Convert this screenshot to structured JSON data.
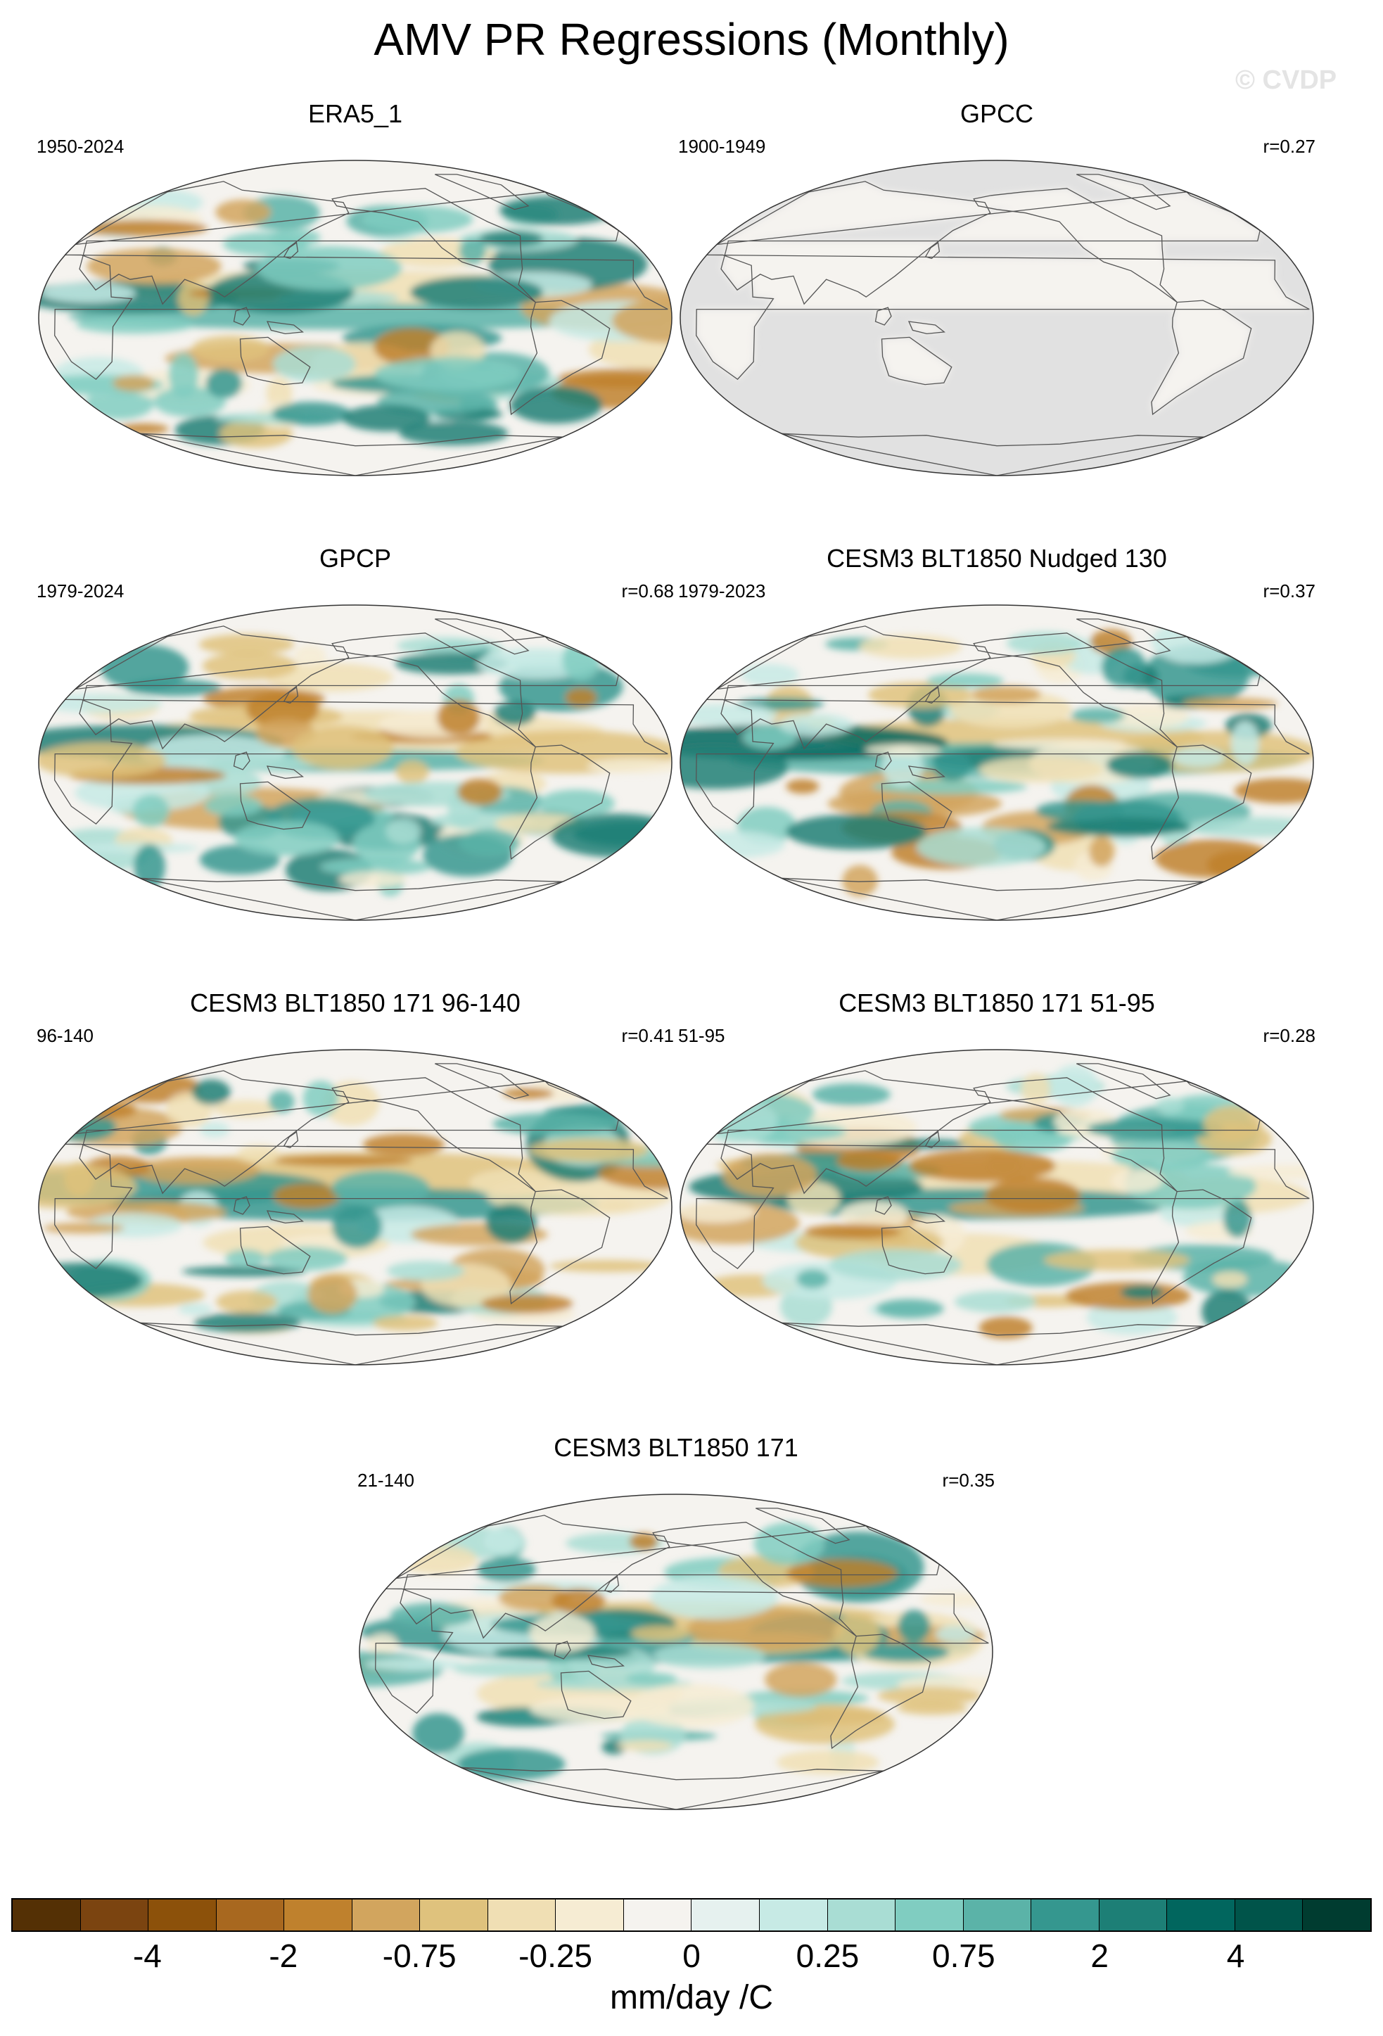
{
  "figure": {
    "title": "AMV PR Regressions (Monthly)",
    "watermark": "© CVDP"
  },
  "panels": [
    {
      "id": "era5",
      "title": "ERA5_1",
      "period": "1950-2024",
      "r": "",
      "mask_ocean": false,
      "pattern": 1
    },
    {
      "id": "gpcc",
      "title": "GPCC",
      "period": "1900-1949",
      "r": "r=0.27",
      "mask_ocean": true,
      "pattern": 2
    },
    {
      "id": "gpcp",
      "title": "GPCP",
      "period": "1979-2024",
      "r": "r=0.68",
      "mask_ocean": false,
      "pattern": 3
    },
    {
      "id": "cesm-nudged",
      "title": "CESM3 BLT1850 Nudged 130",
      "period": "1979-2023",
      "r": "r=0.37",
      "mask_ocean": false,
      "pattern": 4
    },
    {
      "id": "cesm-96-140",
      "title": "CESM3 BLT1850 171 96-140",
      "period": "96-140",
      "r": "r=0.41",
      "mask_ocean": false,
      "pattern": 5
    },
    {
      "id": "cesm-51-95",
      "title": "CESM3 BLT1850 171 51-95",
      "period": "51-95",
      "r": "r=0.28",
      "mask_ocean": false,
      "pattern": 6
    },
    {
      "id": "cesm-21-140",
      "title": "CESM3 BLT1850 171",
      "period": "21-140",
      "r": "r=0.35",
      "mask_ocean": false,
      "pattern": 7
    }
  ],
  "colorbar": {
    "label": "mm/day /C",
    "colors": [
      "#543005",
      "#7b4410",
      "#8c510a",
      "#a8681f",
      "#bf812d",
      "#d2a55e",
      "#dfc27d",
      "#f0dfb4",
      "#f6ecd3",
      "#f5f3ef",
      "#e6f1ef",
      "#c7eae5",
      "#a9ddd4",
      "#80cdc1",
      "#5bb3a8",
      "#35978f",
      "#1d7f76",
      "#01665e",
      "#00544a",
      "#003c30"
    ],
    "ticks": [
      "-4",
      "-2",
      "-0.75",
      "-0.25",
      "0",
      "0.25",
      "0.75",
      "2",
      "4"
    ]
  }
}
